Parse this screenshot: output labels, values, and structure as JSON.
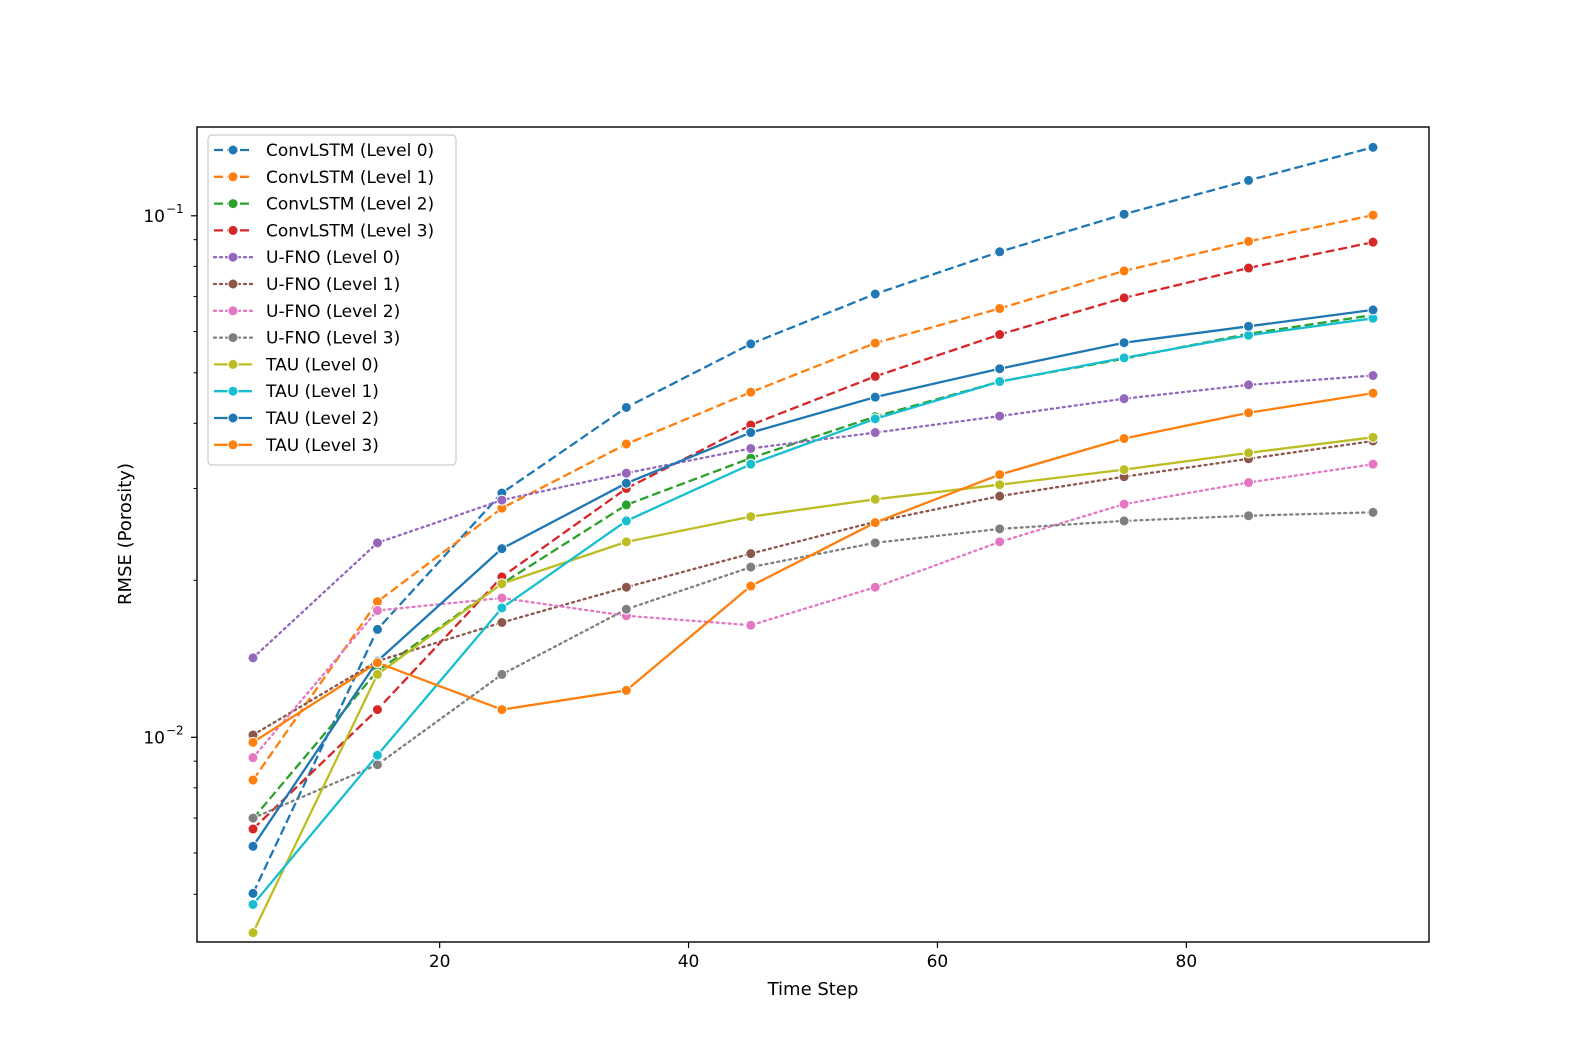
{
  "chart_data": {
    "type": "line",
    "title": "",
    "xlabel": "Time Step",
    "ylabel": "RMSE (Porosity)",
    "yscale": "log",
    "xlim": [
      0.5,
      99.5
    ],
    "ylim": [
      0.00405,
      0.148
    ],
    "x": [
      5,
      15,
      25,
      35,
      45,
      55,
      65,
      75,
      85,
      95
    ],
    "x_ticks": [
      20,
      40,
      60,
      80
    ],
    "y_ticks": [
      {
        "value": 0.1,
        "base": "10",
        "exp": "−1"
      },
      {
        "value": 0.01,
        "base": "10",
        "exp": "−2"
      }
    ],
    "legend_position": "upper-left",
    "series": [
      {
        "name": "ConvLSTM (Level 0)",
        "color": "#1f77b4",
        "style": "dashed",
        "values": [
          0.00502,
          0.0161,
          0.0294,
          0.0429,
          0.0568,
          0.0708,
          0.0853,
          0.1007,
          0.1169,
          0.1353
        ]
      },
      {
        "name": "ConvLSTM (Level 1)",
        "color": "#ff7f0e",
        "style": "dashed",
        "values": [
          0.00828,
          0.0182,
          0.0275,
          0.0365,
          0.0459,
          0.057,
          0.0664,
          0.0784,
          0.0893,
          0.1003
        ]
      },
      {
        "name": "ConvLSTM (Level 2)",
        "color": "#2ca02c",
        "style": "dashed",
        "values": [
          0.00698,
          0.0134,
          0.0197,
          0.0279,
          0.0343,
          0.0412,
          0.0481,
          0.0532,
          0.0594,
          0.0645
        ]
      },
      {
        "name": "ConvLSTM (Level 3)",
        "color": "#d62728",
        "style": "dashed",
        "values": [
          0.00667,
          0.0113,
          0.0203,
          0.03,
          0.0397,
          0.0492,
          0.0592,
          0.0696,
          0.0794,
          0.089
        ]
      },
      {
        "name": "U-FNO (Level 0)",
        "color": "#9467bd",
        "style": "dotted",
        "values": [
          0.0142,
          0.0236,
          0.0285,
          0.0321,
          0.0358,
          0.0384,
          0.0413,
          0.0446,
          0.0474,
          0.0494
        ]
      },
      {
        "name": "U-FNO (Level 1)",
        "color": "#8c564b",
        "style": "dotted",
        "values": [
          0.0101,
          0.014,
          0.0166,
          0.0194,
          0.0225,
          0.0259,
          0.029,
          0.0316,
          0.0342,
          0.037
        ]
      },
      {
        "name": "U-FNO (Level 2)",
        "color": "#e377c2",
        "style": "dotted",
        "values": [
          0.00914,
          0.0175,
          0.0185,
          0.0171,
          0.0164,
          0.0194,
          0.0237,
          0.028,
          0.0308,
          0.0334
        ]
      },
      {
        "name": "U-FNO (Level 3)",
        "color": "#7f7f7f",
        "style": "dotted",
        "values": [
          0.007,
          0.00886,
          0.0132,
          0.0176,
          0.0212,
          0.0236,
          0.0251,
          0.026,
          0.0266,
          0.027
        ]
      },
      {
        "name": "TAU (Level 0)",
        "color": "#bcbd22",
        "style": "solid",
        "values": [
          0.00422,
          0.0132,
          0.0197,
          0.0237,
          0.0265,
          0.0286,
          0.0305,
          0.0326,
          0.0351,
          0.0376
        ]
      },
      {
        "name": "TAU (Level 1)",
        "color": "#17becf",
        "style": "solid",
        "values": [
          0.00478,
          0.00924,
          0.0177,
          0.026,
          0.0334,
          0.0408,
          0.0481,
          0.0534,
          0.059,
          0.0636
        ]
      },
      {
        "name": "TAU (Level 2)",
        "color": "#1f77b4",
        "style": "solid",
        "values": [
          0.00618,
          0.014,
          0.023,
          0.0307,
          0.0384,
          0.0449,
          0.0509,
          0.0571,
          0.0614,
          0.066
        ]
      },
      {
        "name": "TAU (Level 3)",
        "color": "#ff7f0e",
        "style": "solid",
        "values": [
          0.00978,
          0.0139,
          0.0113,
          0.0123,
          0.0195,
          0.0258,
          0.0319,
          0.0374,
          0.0419,
          0.0457
        ]
      }
    ]
  }
}
